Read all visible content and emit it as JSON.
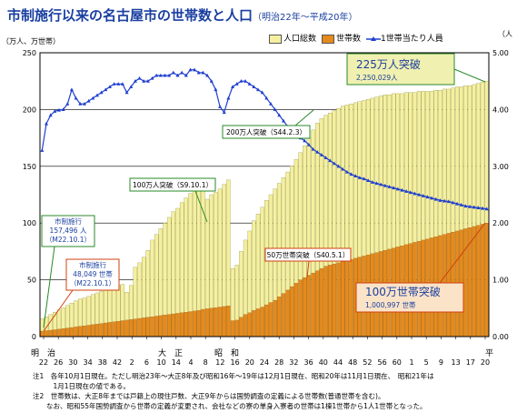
{
  "title": "市制施行以来の名古屋市の世帯数と人口",
  "subtitle": "（明治22年～平成20年）",
  "left_unit": "（万人、万世帯）",
  "right_unit": "（人",
  "legend": [
    {
      "label": "人口総数",
      "color": "#f5f0a0"
    },
    {
      "label": "世帯数",
      "color": "#e58a1c"
    },
    {
      "label": "1世帯当たり人員",
      "color": "#1f3fd0"
    }
  ],
  "annotations": {
    "city_pop_title": "市制施行",
    "city_pop_value": "157,496 人",
    "city_pop_date": "（M22.10.1）",
    "city_hh_title": "市制施行",
    "city_hh_value": "48,049 世帯",
    "city_hh_date": "（M22.10.1）",
    "pop100": "100万人突破（S9.10.1）",
    "pop200": "200万人突破（S44.2.3）",
    "hh50": "50万世帯突破（S40.5.1）",
    "pop225_title": "225万人突破",
    "pop225_value": "2,250,029人",
    "hh100_title": "100万世帯突破",
    "hh100_value": "1,000,997 世帯"
  },
  "era_labels": {
    "meiji": "明　治",
    "taisho": "大　正",
    "showa": "昭　和",
    "heisei": "平"
  },
  "notes": [
    "注1　各年10月1日現在。ただし明治23年～大正8年及び昭和16年～19年は12月1日現在、昭和20年は11月1日現在、　昭和21年は",
    "　　　1月1日現在の値である。",
    "注2　世帯数は、大正8年までは戸籍上の現住戸数、大正9年からは国勢調査の定義による世帯数(普通世帯を含む)。",
    "　　なお、昭和55年国勢調査から世帯の定義が変更され、会社などの寮の単身入寮者の世帯は1棟1世帯から1人1世帯となった。"
  ],
  "chart_data": {
    "type": "bar",
    "x_tick_labels": [
      "22",
      "26",
      "30",
      "34",
      "38",
      "42",
      "2",
      "6",
      "10",
      "14",
      "4",
      "8",
      "12",
      "16",
      "20",
      "24",
      "28",
      "32",
      "36",
      "40",
      "44",
      "48",
      "52",
      "56",
      "60",
      "1",
      "5",
      "9",
      "13",
      "17",
      "20"
    ],
    "left_axis": {
      "label": "（万人、万世帯）",
      "ylim": [
        0,
        250
      ],
      "ticks": [
        0,
        50,
        100,
        150,
        200,
        250
      ]
    },
    "right_axis": {
      "label": "（人",
      "ylim": [
        0,
        5
      ],
      "ticks": [
        "0.00",
        "1.00",
        "2.00",
        "3.00",
        "4.00",
        "5.00"
      ]
    },
    "series": [
      {
        "name": "人口総数",
        "axis": "left",
        "values": [
          15.7,
          17.5,
          19.5,
          21.5,
          23.5,
          25.5,
          27.5,
          29.5,
          31.5,
          33,
          34,
          35.5,
          37,
          38.5,
          40,
          41,
          42,
          43.5,
          45,
          46,
          39,
          45,
          61,
          65,
          70,
          76,
          85,
          90,
          95,
          100,
          105,
          110,
          113,
          118,
          122,
          126,
          130,
          135,
          128,
          121,
          125,
          127,
          130,
          134,
          138,
          60,
          63,
          75,
          85,
          93,
          102,
          108,
          114,
          120,
          125,
          130,
          135,
          140,
          145,
          150,
          156,
          162,
          168,
          175,
          182,
          188,
          192,
          195,
          197,
          199,
          201,
          203,
          204,
          205,
          206,
          207,
          208,
          209,
          210,
          211,
          212,
          213,
          213,
          214,
          214,
          214,
          215,
          215,
          215,
          216,
          216,
          216,
          216,
          217,
          217,
          218,
          218,
          219,
          220,
          220,
          221,
          221,
          222,
          223,
          224,
          225
        ]
      },
      {
        "name": "世帯数",
        "axis": "left",
        "values": [
          4.8,
          5.2,
          5.6,
          6,
          6.5,
          7,
          7.5,
          8,
          8.5,
          9,
          9.5,
          10,
          10.5,
          11,
          11.5,
          12,
          12.5,
          13,
          13.5,
          14,
          14.5,
          15,
          15.5,
          16,
          16.5,
          17,
          17.5,
          18,
          18.5,
          19,
          19.5,
          20,
          20.5,
          21,
          21.5,
          22,
          22.5,
          23,
          24,
          24.5,
          25,
          25.5,
          26,
          26.5,
          27,
          14,
          14.5,
          17,
          19.5,
          21,
          23,
          24.5,
          26,
          28,
          30,
          32,
          35,
          38,
          41,
          44,
          47,
          50,
          52,
          54,
          56,
          58,
          60,
          62,
          63,
          64,
          65,
          66,
          67,
          68,
          69,
          70,
          71,
          72,
          73,
          74,
          75,
          76,
          77,
          78,
          79,
          80,
          81,
          82,
          83,
          84,
          85,
          86,
          87,
          88,
          89,
          90,
          91,
          92,
          93,
          94,
          95,
          96,
          97,
          98,
          99,
          100
        ]
      },
      {
        "name": "1世帯当たり人員",
        "axis": "right",
        "values": [
          3.28,
          3.75,
          3.9,
          3.97,
          3.99,
          4.0,
          4.1,
          4.35,
          4.2,
          4.1,
          4.1,
          4.15,
          4.2,
          4.25,
          4.3,
          4.35,
          4.4,
          4.45,
          4.45,
          4.45,
          4.3,
          4.4,
          4.5,
          4.55,
          4.5,
          4.5,
          4.55,
          4.6,
          4.6,
          4.6,
          4.6,
          4.65,
          4.6,
          4.65,
          4.6,
          4.7,
          4.7,
          4.65,
          4.65,
          4.6,
          4.5,
          4.35,
          4.05,
          3.95,
          4.2,
          4.4,
          4.45,
          4.5,
          4.5,
          4.45,
          4.4,
          4.35,
          4.3,
          4.2,
          4.1,
          4.0,
          3.9,
          3.8,
          3.7,
          3.6,
          3.55,
          3.5,
          3.45,
          3.38,
          3.3,
          3.25,
          3.2,
          3.15,
          3.1,
          3.05,
          3.0,
          2.95,
          2.9,
          2.86,
          2.83,
          2.8,
          2.78,
          2.75,
          2.72,
          2.7,
          2.68,
          2.66,
          2.64,
          2.62,
          2.6,
          2.58,
          2.56,
          2.54,
          2.52,
          2.5,
          2.48,
          2.46,
          2.44,
          2.42,
          2.4,
          2.39,
          2.38,
          2.36,
          2.34,
          2.32,
          2.3,
          2.29,
          2.28,
          2.27,
          2.26,
          2.25
        ]
      }
    ]
  }
}
